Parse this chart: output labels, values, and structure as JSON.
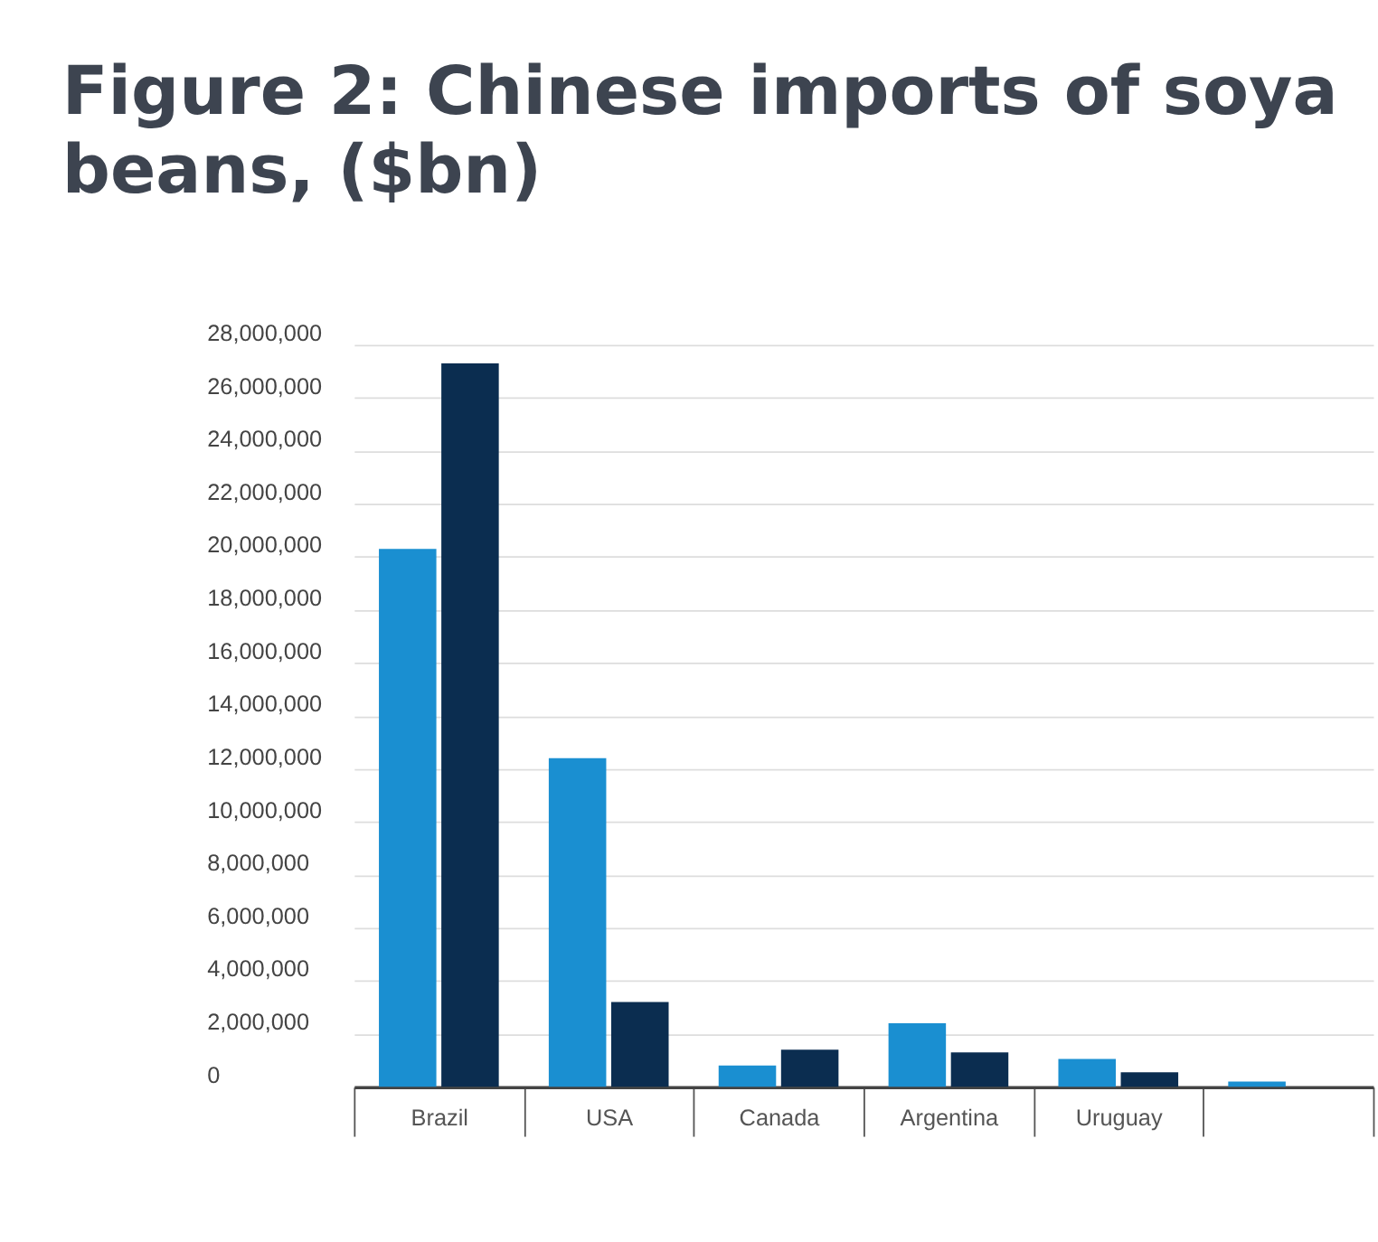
{
  "chart_data": {
    "type": "bar",
    "title": "Figure 2: Chinese imports of soya beans, ($bn)",
    "categories": [
      "Brazil",
      "USA",
      "Canada",
      "Argentina",
      "Uruguay",
      null
    ],
    "series": [
      {
        "color": "#1a8fd1",
        "values": [
          20300000,
          12400000,
          800000,
          2400000,
          1050000,
          200000
        ]
      },
      {
        "color": "#0b2d50",
        "values": [
          27300000,
          3200000,
          1400000,
          1300000,
          550000,
          null
        ]
      }
    ],
    "ylim": [
      0,
      28000000
    ],
    "yticks": [
      0,
      {
        "value": 2000000,
        "label": "2,000,000"
      },
      {
        "value": 4000000,
        "label": "4,000,000"
      },
      {
        "value": 6000000,
        "label": "6,000,000"
      },
      {
        "value": 8000000,
        "label": "8,000,000"
      },
      {
        "value": 10000000,
        "label": "10,000,000"
      },
      {
        "value": 12000000,
        "label": "12,000,000"
      },
      {
        "value": 14000000,
        "label": "14,000,000"
      },
      {
        "value": 16000000,
        "label": "16,000,000"
      },
      {
        "value": 18000000,
        "label": "18,000,000"
      },
      {
        "value": 20000000,
        "label": "20,000,000"
      },
      {
        "value": 22000000,
        "label": "22,000,000"
      },
      {
        "value": 24000000,
        "label": "24,000,000"
      },
      {
        "value": 26000000,
        "label": "26,000,000"
      },
      {
        "value": 28000000,
        "label": "28,000,000"
      }
    ],
    "grid": "y",
    "legend": false
  }
}
